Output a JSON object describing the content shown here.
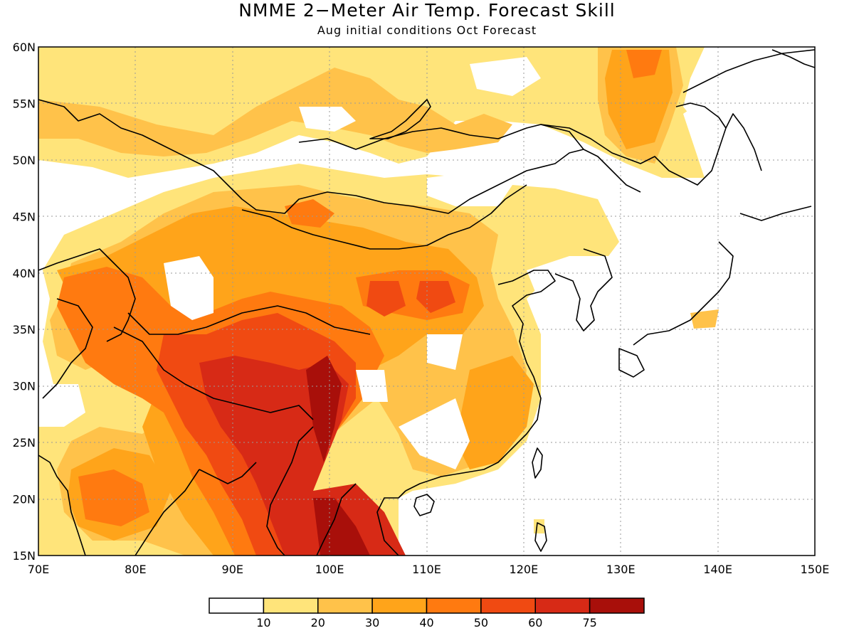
{
  "header": {
    "title": "NMME 2−Meter Air Temp. Forecast Skill",
    "subtitle": "Aug initial conditions  Oct Forecast"
  },
  "map": {
    "lon_range": [
      70,
      150
    ],
    "lat_range": [
      15,
      60
    ],
    "x_ticks": [
      "70E",
      "80E",
      "90E",
      "100E",
      "110E",
      "120E",
      "130E",
      "140E",
      "150E"
    ],
    "y_ticks": [
      "60N",
      "55N",
      "50N",
      "45N",
      "40N",
      "35N",
      "30N",
      "25N",
      "20N",
      "15N"
    ],
    "gridlines": "dotted",
    "coastlines": true
  },
  "colorbar": {
    "colors": [
      "#ffffff",
      "#ffe47a",
      "#ffc24a",
      "#ffa41a",
      "#ff7a10",
      "#f04a12",
      "#d72a16",
      "#a80f0a"
    ],
    "labels": [
      "10",
      "20",
      "30",
      "40",
      "50",
      "60",
      "75"
    ]
  },
  "colors": {
    "white": "#ffffff",
    "light_yellow": "#ffe47a",
    "yellow_orange": "#ffc24a",
    "orange": "#ffa41a",
    "dark_orange": "#ff7a10",
    "red_orange": "#f04a12",
    "red": "#d72a16",
    "dark_red": "#a80f0a"
  }
}
